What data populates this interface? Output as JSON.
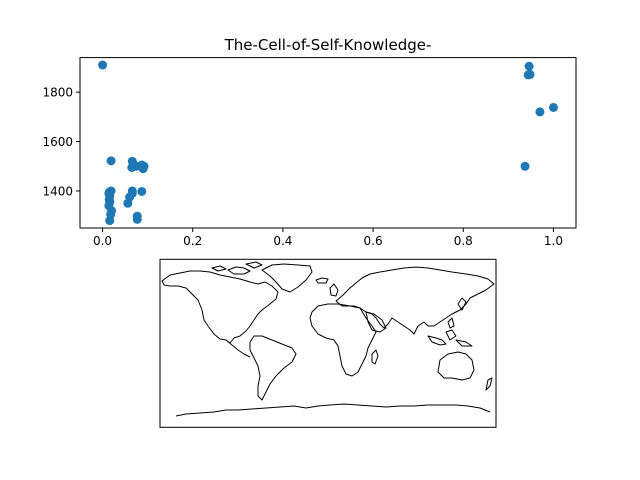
{
  "chart_data": [
    {
      "type": "scatter",
      "title": "The-Cell-of-Self-Knowledge-",
      "xlabel": "",
      "ylabel": "",
      "xlim": [
        -0.05,
        1.05
      ],
      "ylim": [
        1250,
        1940
      ],
      "xticks": [
        0.0,
        0.2,
        0.4,
        0.6,
        0.8,
        1.0
      ],
      "xtick_labels": [
        "0.0",
        "0.2",
        "0.4",
        "0.6",
        "0.8",
        "1.0"
      ],
      "yticks": [
        1400,
        1600,
        1800
      ],
      "ytick_labels": [
        "1400",
        "1600",
        "1800"
      ],
      "grid": false,
      "legend": "none",
      "marker_color": "#1f77b4",
      "x": [
        0.0,
        0.016,
        0.018,
        0.02,
        0.014,
        0.016,
        0.015,
        0.016,
        0.014,
        0.015,
        0.019,
        0.019,
        0.056,
        0.06,
        0.066,
        0.066,
        0.065,
        0.066,
        0.07,
        0.077,
        0.077,
        0.075,
        0.087,
        0.09,
        0.092,
        0.087,
        0.937,
        0.944,
        0.946,
        0.948,
        0.97,
        1.0
      ],
      "y": [
        1910,
        1280,
        1305,
        1320,
        1340,
        1355,
        1365,
        1380,
        1390,
        1395,
        1400,
        1522,
        1350,
        1375,
        1390,
        1400,
        1495,
        1520,
        1505,
        1285,
        1298,
        1500,
        1398,
        1490,
        1500,
        1505,
        1500,
        1870,
        1905,
        1872,
        1720,
        1738
      ]
    },
    {
      "type": "map",
      "projection": "PlateCarree",
      "features": [
        "coastlines"
      ],
      "coastline_color": "#000000"
    }
  ]
}
